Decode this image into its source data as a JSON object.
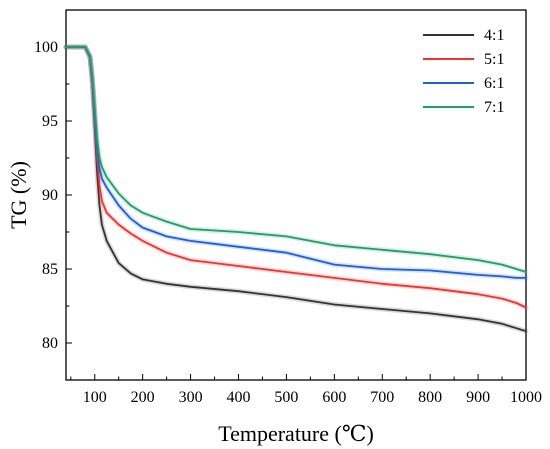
{
  "chart_data": {
    "type": "line",
    "title": "",
    "xlabel": "Temperature (℃)",
    "ylabel": "TG (%)",
    "xlim": [
      40,
      1000
    ],
    "ylim": [
      77.5,
      102.5
    ],
    "x_ticks": [
      100,
      200,
      300,
      400,
      500,
      600,
      700,
      800,
      900,
      1000
    ],
    "y_ticks": [
      80,
      85,
      90,
      95,
      100
    ],
    "grid": false,
    "legend_position": "top-right",
    "series": [
      {
        "name": "4:1",
        "color": "#333333",
        "points": [
          [
            40,
            100
          ],
          [
            80,
            100
          ],
          [
            90,
            99.3
          ],
          [
            95,
            97.5
          ],
          [
            100,
            94.5
          ],
          [
            105,
            91.5
          ],
          [
            110,
            89.3
          ],
          [
            115,
            88.0
          ],
          [
            125,
            86.9
          ],
          [
            150,
            85.4
          ],
          [
            175,
            84.7
          ],
          [
            200,
            84.3
          ],
          [
            250,
            84.0
          ],
          [
            300,
            83.8
          ],
          [
            400,
            83.5
          ],
          [
            500,
            83.1
          ],
          [
            600,
            82.6
          ],
          [
            700,
            82.3
          ],
          [
            800,
            82.0
          ],
          [
            900,
            81.6
          ],
          [
            950,
            81.3
          ],
          [
            980,
            81.0
          ],
          [
            1000,
            80.8
          ]
        ]
      },
      {
        "name": "5:1",
        "color": "#ee3333",
        "points": [
          [
            40,
            100
          ],
          [
            80,
            100
          ],
          [
            90,
            99.3
          ],
          [
            95,
            97.6
          ],
          [
            100,
            95.0
          ],
          [
            105,
            92.5
          ],
          [
            110,
            90.6
          ],
          [
            115,
            89.6
          ],
          [
            125,
            88.8
          ],
          [
            150,
            88.0
          ],
          [
            175,
            87.4
          ],
          [
            200,
            86.9
          ],
          [
            250,
            86.1
          ],
          [
            300,
            85.6
          ],
          [
            400,
            85.2
          ],
          [
            500,
            84.8
          ],
          [
            600,
            84.4
          ],
          [
            700,
            84.0
          ],
          [
            800,
            83.7
          ],
          [
            900,
            83.3
          ],
          [
            950,
            83.0
          ],
          [
            980,
            82.7
          ],
          [
            1000,
            82.4
          ]
        ]
      },
      {
        "name": "6:1",
        "color": "#1f5fd6",
        "points": [
          [
            40,
            100
          ],
          [
            80,
            100
          ],
          [
            90,
            99.4
          ],
          [
            95,
            97.8
          ],
          [
            100,
            95.4
          ],
          [
            105,
            93.2
          ],
          [
            110,
            91.8
          ],
          [
            115,
            91.1
          ],
          [
            125,
            90.5
          ],
          [
            150,
            89.3
          ],
          [
            175,
            88.4
          ],
          [
            200,
            87.8
          ],
          [
            250,
            87.2
          ],
          [
            300,
            86.9
          ],
          [
            400,
            86.5
          ],
          [
            500,
            86.1
          ],
          [
            600,
            85.3
          ],
          [
            700,
            85.0
          ],
          [
            800,
            84.9
          ],
          [
            900,
            84.6
          ],
          [
            950,
            84.5
          ],
          [
            980,
            84.4
          ],
          [
            1000,
            84.4
          ]
        ]
      },
      {
        "name": "7:1",
        "color": "#1f9e6a",
        "points": [
          [
            40,
            100
          ],
          [
            80,
            100
          ],
          [
            90,
            99.4
          ],
          [
            95,
            98.0
          ],
          [
            100,
            95.8
          ],
          [
            105,
            93.8
          ],
          [
            110,
            92.5
          ],
          [
            115,
            91.9
          ],
          [
            125,
            91.2
          ],
          [
            150,
            90.1
          ],
          [
            175,
            89.3
          ],
          [
            200,
            88.8
          ],
          [
            250,
            88.2
          ],
          [
            300,
            87.7
          ],
          [
            400,
            87.5
          ],
          [
            500,
            87.2
          ],
          [
            600,
            86.6
          ],
          [
            700,
            86.3
          ],
          [
            800,
            86.0
          ],
          [
            900,
            85.6
          ],
          [
            950,
            85.3
          ],
          [
            980,
            85.0
          ],
          [
            1000,
            84.8
          ]
        ]
      }
    ]
  }
}
